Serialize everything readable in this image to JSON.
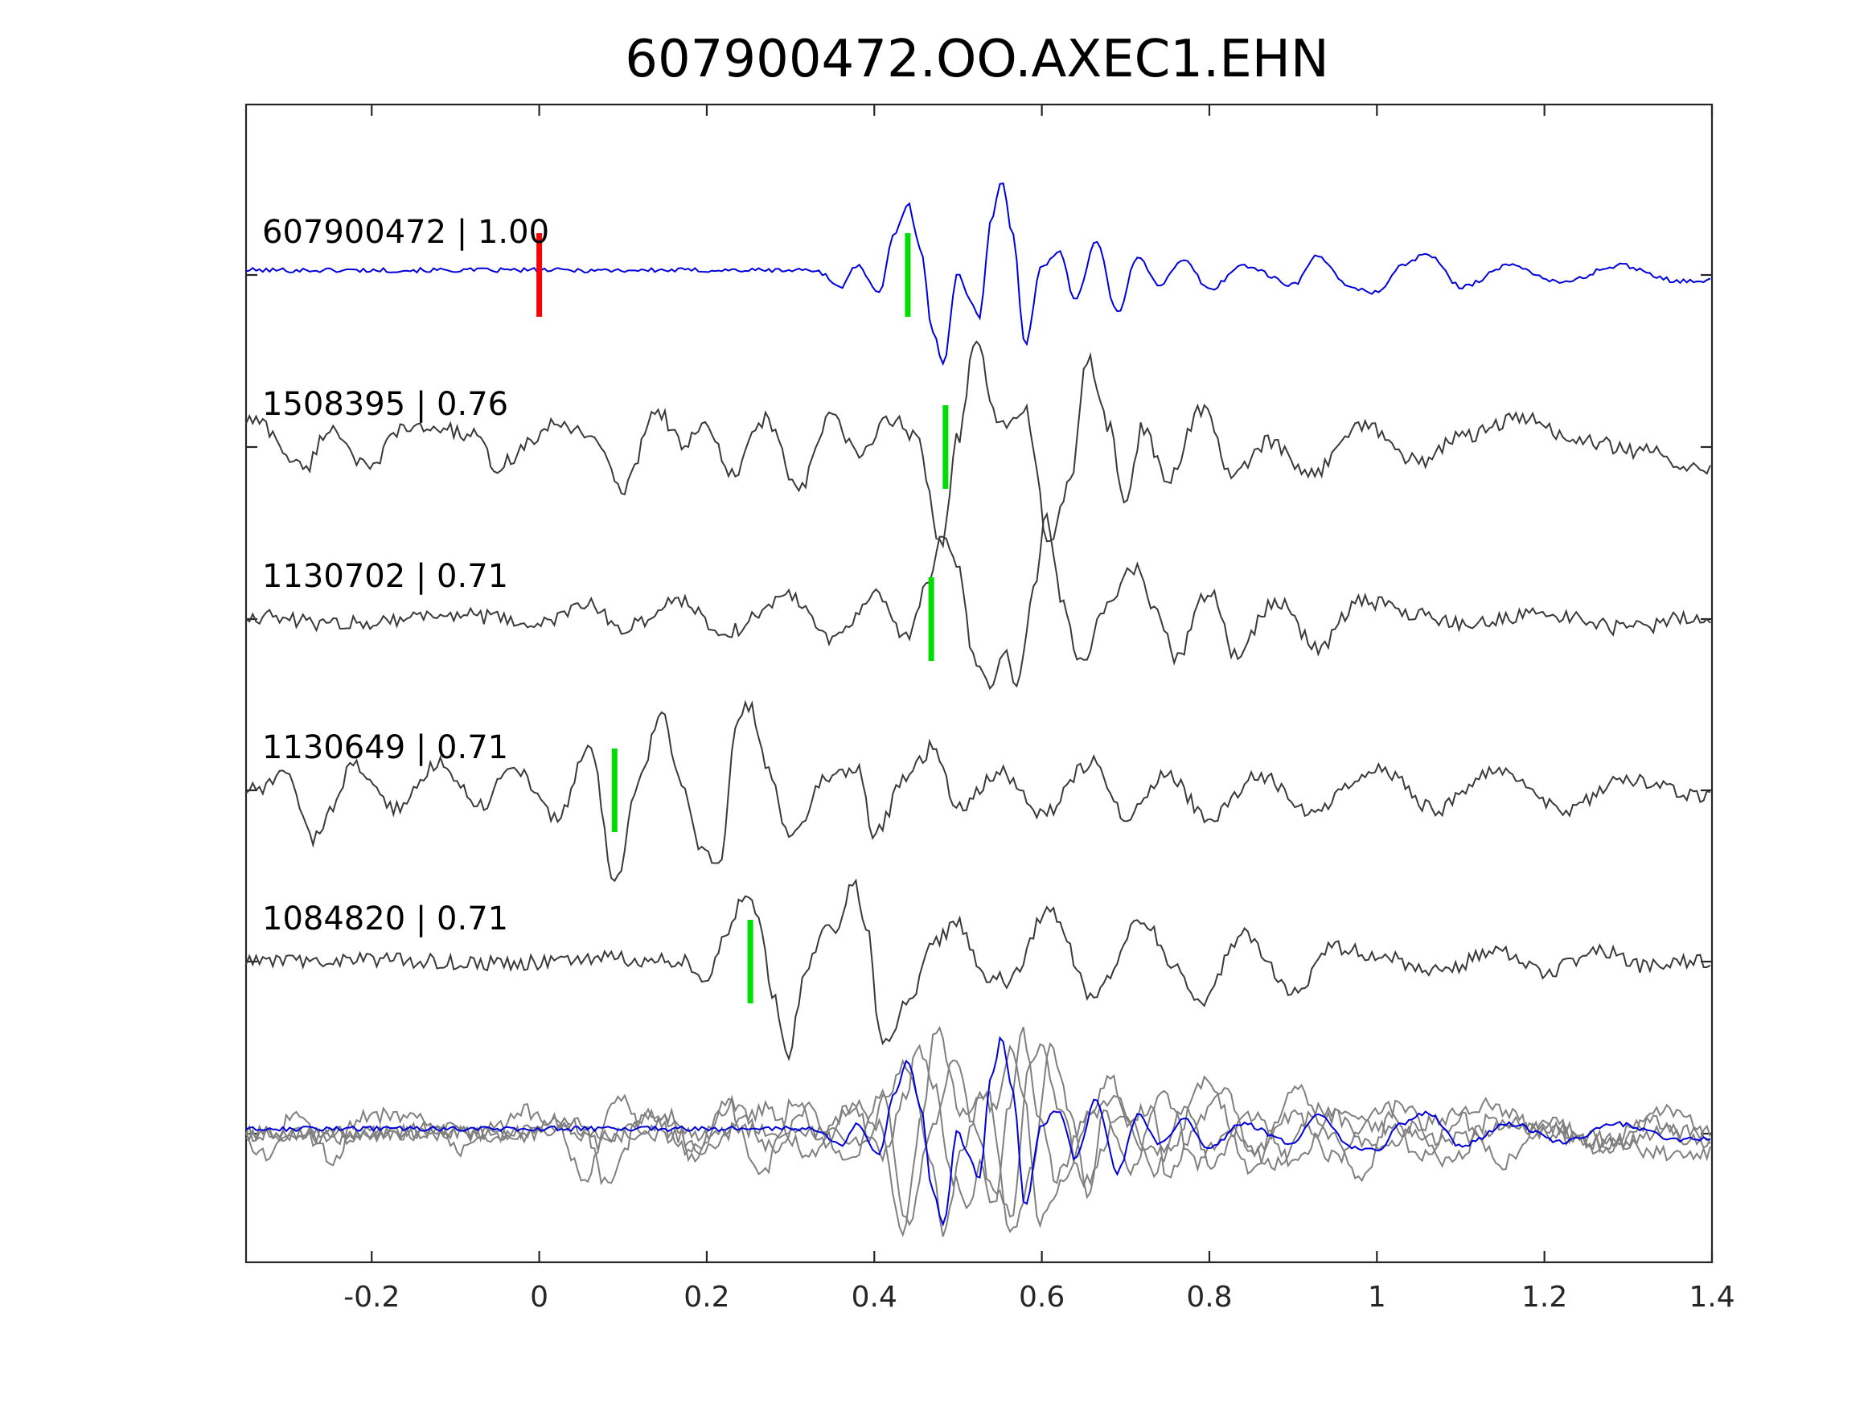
{
  "chart_data": {
    "type": "line",
    "title": "607900472.OO.AXEC1.EHN",
    "xlabel": "",
    "ylabel": "",
    "xlim": [
      -0.35,
      1.4
    ],
    "x_ticks": [
      -0.2,
      0,
      0.2,
      0.4,
      0.6,
      0.8,
      1,
      1.2,
      1.4
    ],
    "x_tick_labels": [
      "-0.2",
      "0",
      "0.2",
      "0.4",
      "0.6",
      "0.8",
      "1",
      "1.2",
      "1.4"
    ],
    "grid": false,
    "colors": {
      "target": "#0000dd",
      "neighbor": "#3a3a3a",
      "overlay_neighbor": "#808080",
      "origin_pick": "#ff0000",
      "phase_pick": "#00dd00",
      "axes": "#262626"
    },
    "traces": [
      {
        "label": "607900472 | 1.00",
        "station": "607900472",
        "correlation": 1.0,
        "pick_time": 0.44,
        "origin_marker_time": 0.0,
        "color": "target",
        "waveform": [
          {
            "t": 0.33,
            "a": 0.05
          },
          {
            "t": 0.36,
            "a": -0.12
          },
          {
            "t": 0.38,
            "a": 0.1
          },
          {
            "t": 0.405,
            "a": -0.2
          },
          {
            "t": 0.425,
            "a": 0.45
          },
          {
            "t": 0.44,
            "a": 0.75
          },
          {
            "t": 0.455,
            "a": 0.3
          },
          {
            "t": 0.47,
            "a": -0.6
          },
          {
            "t": 0.482,
            "a": -0.95
          },
          {
            "t": 0.5,
            "a": 0.05
          },
          {
            "t": 0.51,
            "a": -0.2
          },
          {
            "t": 0.525,
            "a": -0.45
          },
          {
            "t": 0.54,
            "a": 0.6
          },
          {
            "t": 0.552,
            "a": 1.0
          },
          {
            "t": 0.565,
            "a": 0.45
          },
          {
            "t": 0.58,
            "a": -0.75
          },
          {
            "t": 0.6,
            "a": 0.1
          },
          {
            "t": 0.62,
            "a": 0.25
          },
          {
            "t": 0.64,
            "a": -0.25
          },
          {
            "t": 0.665,
            "a": 0.35
          },
          {
            "t": 0.69,
            "a": -0.4
          },
          {
            "t": 0.715,
            "a": 0.2
          },
          {
            "t": 0.74,
            "a": -0.1
          },
          {
            "t": 0.77,
            "a": 0.15
          },
          {
            "t": 0.8,
            "a": -0.15
          },
          {
            "t": 0.84,
            "a": 0.1
          },
          {
            "t": 0.9,
            "a": -0.1
          },
          {
            "t": 0.93,
            "a": 0.2
          },
          {
            "t": 0.97,
            "a": -0.15
          },
          {
            "t": 1.0,
            "a": -0.18
          },
          {
            "t": 1.03,
            "a": 0.1
          },
          {
            "t": 1.06,
            "a": 0.22
          },
          {
            "t": 1.1,
            "a": -0.12
          },
          {
            "t": 1.16,
            "a": 0.1
          },
          {
            "t": 1.22,
            "a": -0.08
          },
          {
            "t": 1.29,
            "a": 0.1
          },
          {
            "t": 1.36,
            "a": -0.06
          }
        ]
      },
      {
        "label": "1508395 | 0.76",
        "station": "1508395",
        "correlation": 0.76,
        "pick_time": 0.485,
        "color": "neighbor",
        "waveform": [
          {
            "t": -0.34,
            "a": 0.28
          },
          {
            "t": -0.28,
            "a": -0.22
          },
          {
            "t": -0.25,
            "a": 0.2
          },
          {
            "t": -0.2,
            "a": -0.25
          },
          {
            "t": -0.17,
            "a": 0.18
          },
          {
            "t": -0.12,
            "a": 0.2
          },
          {
            "t": -0.08,
            "a": 0.12
          },
          {
            "t": -0.05,
            "a": -0.2
          },
          {
            "t": 0.0,
            "a": 0.1
          },
          {
            "t": 0.02,
            "a": 0.25
          },
          {
            "t": 0.06,
            "a": 0.15
          },
          {
            "t": 0.1,
            "a": -0.45
          },
          {
            "t": 0.14,
            "a": 0.4
          },
          {
            "t": 0.17,
            "a": 0.05
          },
          {
            "t": 0.2,
            "a": 0.2
          },
          {
            "t": 0.23,
            "a": -0.3
          },
          {
            "t": 0.27,
            "a": 0.3
          },
          {
            "t": 0.31,
            "a": -0.45
          },
          {
            "t": 0.35,
            "a": 0.35
          },
          {
            "t": 0.38,
            "a": -0.1
          },
          {
            "t": 0.42,
            "a": 0.3
          },
          {
            "t": 0.45,
            "a": 0.1
          },
          {
            "t": 0.48,
            "a": -1.0
          },
          {
            "t": 0.5,
            "a": 0.1
          },
          {
            "t": 0.52,
            "a": 1.1
          },
          {
            "t": 0.55,
            "a": 0.2
          },
          {
            "t": 0.58,
            "a": 0.4
          },
          {
            "t": 0.61,
            "a": -1.05
          },
          {
            "t": 0.635,
            "a": -0.3
          },
          {
            "t": 0.655,
            "a": 0.95
          },
          {
            "t": 0.68,
            "a": 0.2
          },
          {
            "t": 0.7,
            "a": -0.6
          },
          {
            "t": 0.72,
            "a": 0.2
          },
          {
            "t": 0.75,
            "a": -0.35
          },
          {
            "t": 0.79,
            "a": 0.4
          },
          {
            "t": 0.83,
            "a": -0.3
          },
          {
            "t": 0.87,
            "a": 0.05
          },
          {
            "t": 0.92,
            "a": -0.3
          },
          {
            "t": 0.98,
            "a": 0.25
          },
          {
            "t": 1.05,
            "a": -0.15
          },
          {
            "t": 1.1,
            "a": 0.1
          },
          {
            "t": 1.17,
            "a": 0.3
          },
          {
            "t": 1.25,
            "a": 0.05
          },
          {
            "t": 1.32,
            "a": -0.05
          },
          {
            "t": 1.38,
            "a": -0.2
          }
        ]
      },
      {
        "label": "1130702 | 0.71",
        "station": "1130702",
        "correlation": 0.71,
        "pick_time": 0.468,
        "color": "neighbor",
        "waveform": [
          {
            "t": -0.34,
            "a": 0.03
          },
          {
            "t": -0.25,
            "a": -0.05
          },
          {
            "t": -0.1,
            "a": 0.05
          },
          {
            "t": 0.0,
            "a": -0.05
          },
          {
            "t": 0.06,
            "a": 0.15
          },
          {
            "t": 0.1,
            "a": -0.1
          },
          {
            "t": 0.17,
            "a": 0.2
          },
          {
            "t": 0.22,
            "a": -0.15
          },
          {
            "t": 0.3,
            "a": 0.25
          },
          {
            "t": 0.35,
            "a": -0.2
          },
          {
            "t": 0.4,
            "a": 0.25
          },
          {
            "t": 0.44,
            "a": -0.2
          },
          {
            "t": 0.465,
            "a": 0.4
          },
          {
            "t": 0.48,
            "a": 0.9
          },
          {
            "t": 0.5,
            "a": 0.5
          },
          {
            "t": 0.52,
            "a": -0.45
          },
          {
            "t": 0.54,
            "a": -0.7
          },
          {
            "t": 0.555,
            "a": -0.35
          },
          {
            "t": 0.57,
            "a": -0.75
          },
          {
            "t": 0.59,
            "a": 0.3
          },
          {
            "t": 0.605,
            "a": 1.05
          },
          {
            "t": 0.625,
            "a": 0.2
          },
          {
            "t": 0.645,
            "a": -0.45
          },
          {
            "t": 0.68,
            "a": 0.15
          },
          {
            "t": 0.71,
            "a": 0.55
          },
          {
            "t": 0.735,
            "a": 0.1
          },
          {
            "t": 0.76,
            "a": -0.4
          },
          {
            "t": 0.8,
            "a": 0.3
          },
          {
            "t": 0.83,
            "a": -0.35
          },
          {
            "t": 0.88,
            "a": 0.2
          },
          {
            "t": 0.93,
            "a": -0.3
          },
          {
            "t": 0.98,
            "a": 0.2
          },
          {
            "t": 1.05,
            "a": 0.05
          },
          {
            "t": 1.1,
            "a": -0.05
          },
          {
            "t": 1.2,
            "a": 0.05
          },
          {
            "t": 1.3,
            "a": -0.1
          },
          {
            "t": 1.38,
            "a": 0.02
          }
        ]
      },
      {
        "label": "1130649 | 0.71",
        "station": "1130649",
        "correlation": 0.71,
        "pick_time": 0.09,
        "color": "neighbor",
        "waveform": [
          {
            "t": -0.34,
            "a": 0.0
          },
          {
            "t": -0.3,
            "a": 0.15
          },
          {
            "t": -0.27,
            "a": -0.5
          },
          {
            "t": -0.22,
            "a": 0.25
          },
          {
            "t": -0.17,
            "a": -0.2
          },
          {
            "t": -0.12,
            "a": 0.3
          },
          {
            "t": -0.07,
            "a": -0.15
          },
          {
            "t": -0.03,
            "a": 0.25
          },
          {
            "t": 0.02,
            "a": -0.3
          },
          {
            "t": 0.06,
            "a": 0.45
          },
          {
            "t": 0.09,
            "a": -0.95
          },
          {
            "t": 0.12,
            "a": 0.1
          },
          {
            "t": 0.145,
            "a": 0.8
          },
          {
            "t": 0.17,
            "a": 0.1
          },
          {
            "t": 0.19,
            "a": -0.55
          },
          {
            "t": 0.215,
            "a": -0.8
          },
          {
            "t": 0.235,
            "a": 0.65
          },
          {
            "t": 0.25,
            "a": 0.9
          },
          {
            "t": 0.27,
            "a": 0.3
          },
          {
            "t": 0.3,
            "a": -0.5
          },
          {
            "t": 0.34,
            "a": 0.1
          },
          {
            "t": 0.38,
            "a": 0.25
          },
          {
            "t": 0.4,
            "a": -0.45
          },
          {
            "t": 0.44,
            "a": 0.15
          },
          {
            "t": 0.47,
            "a": 0.45
          },
          {
            "t": 0.5,
            "a": -0.2
          },
          {
            "t": 0.55,
            "a": 0.2
          },
          {
            "t": 0.6,
            "a": -0.25
          },
          {
            "t": 0.66,
            "a": 0.3
          },
          {
            "t": 0.7,
            "a": -0.25
          },
          {
            "t": 0.75,
            "a": 0.15
          },
          {
            "t": 0.8,
            "a": -0.3
          },
          {
            "t": 0.86,
            "a": 0.15
          },
          {
            "t": 0.92,
            "a": -0.2
          },
          {
            "t": 1.0,
            "a": 0.25
          },
          {
            "t": 1.07,
            "a": -0.2
          },
          {
            "t": 1.14,
            "a": 0.2
          },
          {
            "t": 1.22,
            "a": -0.2
          },
          {
            "t": 1.3,
            "a": 0.1
          },
          {
            "t": 1.38,
            "a": -0.05
          }
        ]
      },
      {
        "label": "1084820 | 0.71",
        "station": "1084820",
        "correlation": 0.71,
        "pick_time": 0.252,
        "color": "neighbor",
        "waveform": [
          {
            "t": -0.34,
            "a": 0.0
          },
          {
            "t": -0.2,
            "a": 0.02
          },
          {
            "t": -0.05,
            "a": -0.02
          },
          {
            "t": 0.1,
            "a": 0.03
          },
          {
            "t": 0.17,
            "a": 0.0
          },
          {
            "t": 0.2,
            "a": -0.15
          },
          {
            "t": 0.225,
            "a": 0.35
          },
          {
            "t": 0.245,
            "a": 0.7
          },
          {
            "t": 0.26,
            "a": 0.5
          },
          {
            "t": 0.28,
            "a": -0.35
          },
          {
            "t": 0.295,
            "a": -1.0
          },
          {
            "t": 0.32,
            "a": -0.1
          },
          {
            "t": 0.34,
            "a": 0.4
          },
          {
            "t": 0.355,
            "a": 0.25
          },
          {
            "t": 0.375,
            "a": 0.85
          },
          {
            "t": 0.39,
            "a": 0.4
          },
          {
            "t": 0.41,
            "a": -0.9
          },
          {
            "t": 0.44,
            "a": -0.45
          },
          {
            "t": 0.47,
            "a": 0.2
          },
          {
            "t": 0.5,
            "a": 0.4
          },
          {
            "t": 0.53,
            "a": -0.15
          },
          {
            "t": 0.56,
            "a": -0.2
          },
          {
            "t": 0.61,
            "a": 0.55
          },
          {
            "t": 0.66,
            "a": -0.35
          },
          {
            "t": 0.72,
            "a": 0.45
          },
          {
            "t": 0.76,
            "a": -0.05
          },
          {
            "t": 0.79,
            "a": -0.45
          },
          {
            "t": 0.84,
            "a": 0.3
          },
          {
            "t": 0.9,
            "a": -0.3
          },
          {
            "t": 0.95,
            "a": 0.15
          },
          {
            "t": 1.0,
            "a": 0.05
          },
          {
            "t": 1.08,
            "a": -0.1
          },
          {
            "t": 1.14,
            "a": 0.12
          },
          {
            "t": 1.2,
            "a": -0.1
          },
          {
            "t": 1.27,
            "a": 0.1
          },
          {
            "t": 1.32,
            "a": -0.05
          },
          {
            "t": 1.38,
            "a": 0.0
          }
        ]
      }
    ],
    "overlay": {
      "description_visible": false,
      "series": [
        "607900472",
        "1508395",
        "1130702",
        "1130649",
        "1084820"
      ]
    }
  }
}
